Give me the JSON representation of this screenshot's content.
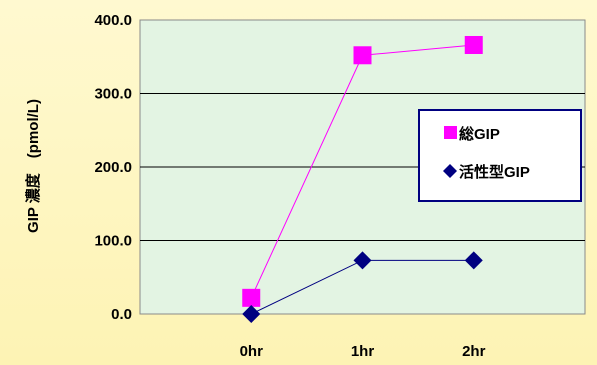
{
  "chart_data": {
    "type": "line",
    "categories": [
      "",
      "0hr",
      "1hr",
      "2hr",
      ""
    ],
    "ylabel": "GIP 濃度　(pmol/L)",
    "ylim": [
      0,
      400
    ],
    "yticks": [
      "0.0",
      "100.0",
      "200.0",
      "300.0",
      "400.0"
    ],
    "grid": true,
    "legend_position": "right",
    "series": [
      {
        "name": "総GIP",
        "marker": "square",
        "color": "#ff00ff",
        "values": [
          null,
          22,
          352,
          366,
          null
        ]
      },
      {
        "name": "活性型GIP",
        "marker": "diamond",
        "color": "#000080",
        "values": [
          null,
          0,
          73,
          73,
          null
        ]
      }
    ]
  },
  "colors": {
    "plot_background": "#e3f4e3",
    "grid": "#000000",
    "legend_border": "#000080"
  }
}
